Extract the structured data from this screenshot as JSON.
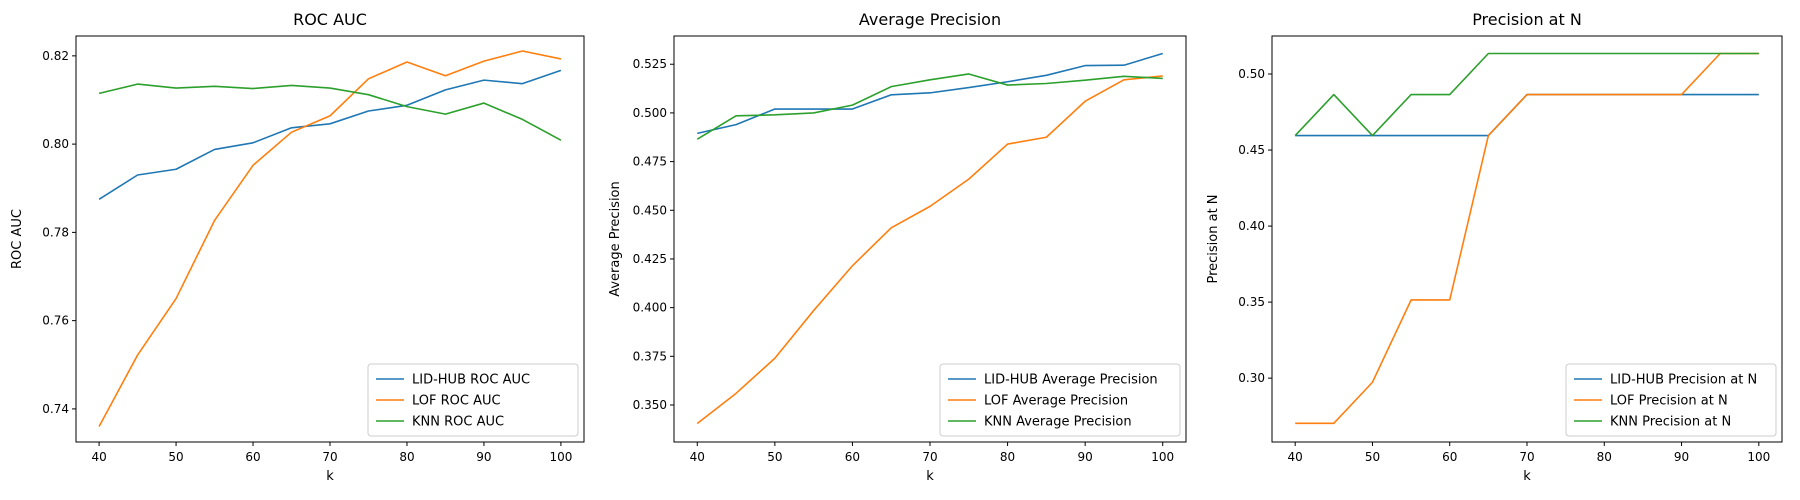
{
  "colors": {
    "series_1": "#1f77b4",
    "series_2": "#ff7f0e",
    "series_3": "#2ca02c"
  },
  "chart_data": [
    {
      "type": "line",
      "title": "ROC AUC",
      "xlabel": "k",
      "ylabel": "ROC AUC",
      "x": [
        40,
        45,
        50,
        55,
        60,
        65,
        70,
        75,
        80,
        85,
        90,
        95,
        100
      ],
      "xlim": [
        37,
        103
      ],
      "ylim": [
        0.7325,
        0.8245
      ],
      "xticks": [
        40,
        50,
        60,
        70,
        80,
        90,
        100
      ],
      "yticks": [
        0.74,
        0.76,
        0.78,
        0.8,
        0.82
      ],
      "ytick_labels": [
        "0.74",
        "0.76",
        "0.78",
        "0.80",
        "0.82"
      ],
      "grid": false,
      "legend_position": "lower-right",
      "series": [
        {
          "name": "LID-HUB ROC AUC",
          "color": "#1f77b4",
          "values": [
            0.7875,
            0.793,
            0.7943,
            0.7988,
            0.8003,
            0.8037,
            0.8046,
            0.8075,
            0.8088,
            0.8123,
            0.8145,
            0.8137,
            0.8167
          ]
        },
        {
          "name": "LOF ROC AUC",
          "color": "#ff7f0e",
          "values": [
            0.736,
            0.7522,
            0.765,
            0.7827,
            0.7952,
            0.8027,
            0.8064,
            0.8148,
            0.8186,
            0.8155,
            0.8188,
            0.8211,
            0.8193
          ]
        },
        {
          "name": "KNN ROC AUC",
          "color": "#2ca02c",
          "values": [
            0.8115,
            0.8136,
            0.8127,
            0.8131,
            0.8126,
            0.8133,
            0.8127,
            0.8112,
            0.8085,
            0.8068,
            0.8093,
            0.8056,
            0.8009
          ]
        }
      ]
    },
    {
      "type": "line",
      "title": "Average Precision",
      "xlabel": "k",
      "ylabel": "Average Precision",
      "x": [
        40,
        45,
        50,
        55,
        60,
        65,
        70,
        75,
        80,
        85,
        90,
        95,
        100
      ],
      "xlim": [
        37,
        103
      ],
      "ylim": [
        0.331,
        0.5395
      ],
      "xticks": [
        40,
        50,
        60,
        70,
        80,
        90,
        100
      ],
      "yticks": [
        0.35,
        0.375,
        0.4,
        0.425,
        0.45,
        0.475,
        0.5,
        0.525
      ],
      "ytick_labels": [
        "0.350",
        "0.375",
        "0.400",
        "0.425",
        "0.450",
        "0.475",
        "0.500",
        "0.525"
      ],
      "grid": false,
      "legend_position": "lower-right",
      "series": [
        {
          "name": "LID-HUB Average Precision",
          "color": "#1f77b4",
          "values": [
            0.4895,
            0.494,
            0.502,
            0.502,
            0.502,
            0.5093,
            0.5103,
            0.513,
            0.516,
            0.5193,
            0.5243,
            0.5245,
            0.5305
          ]
        },
        {
          "name": "LOF Average Precision",
          "color": "#ff7f0e",
          "values": [
            0.3405,
            0.356,
            0.374,
            0.3985,
            0.4215,
            0.441,
            0.452,
            0.466,
            0.484,
            0.4875,
            0.506,
            0.517,
            0.519
          ]
        },
        {
          "name": "KNN Average Precision",
          "color": "#2ca02c",
          "values": [
            0.4865,
            0.4985,
            0.499,
            0.5,
            0.504,
            0.5135,
            0.517,
            0.52,
            0.5143,
            0.5151,
            0.5168,
            0.5188,
            0.5177
          ]
        }
      ]
    },
    {
      "type": "line",
      "title": "Precision at N",
      "xlabel": "k",
      "ylabel": "Precision at N",
      "x": [
        40,
        45,
        50,
        55,
        60,
        65,
        70,
        75,
        80,
        85,
        90,
        95,
        100
      ],
      "xlim": [
        37,
        103
      ],
      "ylim": [
        0.258,
        0.525
      ],
      "xticks": [
        40,
        50,
        60,
        70,
        80,
        90,
        100
      ],
      "yticks": [
        0.3,
        0.35,
        0.4,
        0.45,
        0.5
      ],
      "ytick_labels": [
        "0.30",
        "0.35",
        "0.40",
        "0.45",
        "0.50"
      ],
      "grid": false,
      "legend_position": "lower-right",
      "series": [
        {
          "name": "LID-HUB Precision at N",
          "color": "#1f77b4",
          "values": [
            0.4595,
            0.4595,
            0.4595,
            0.4595,
            0.4595,
            0.4595,
            0.4865,
            0.4865,
            0.4865,
            0.4865,
            0.4865,
            0.4865,
            0.4865
          ]
        },
        {
          "name": "LOF Precision at N",
          "color": "#ff7f0e",
          "values": [
            0.2703,
            0.2703,
            0.2973,
            0.3514,
            0.3514,
            0.4595,
            0.4865,
            0.4865,
            0.4865,
            0.4865,
            0.4865,
            0.5135,
            0.5135
          ]
        },
        {
          "name": "KNN Precision at N",
          "color": "#2ca02c",
          "values": [
            0.4595,
            0.4865,
            0.4595,
            0.4865,
            0.4865,
            0.5135,
            0.5135,
            0.5135,
            0.5135,
            0.5135,
            0.5135,
            0.5135,
            0.5135
          ]
        }
      ]
    }
  ]
}
